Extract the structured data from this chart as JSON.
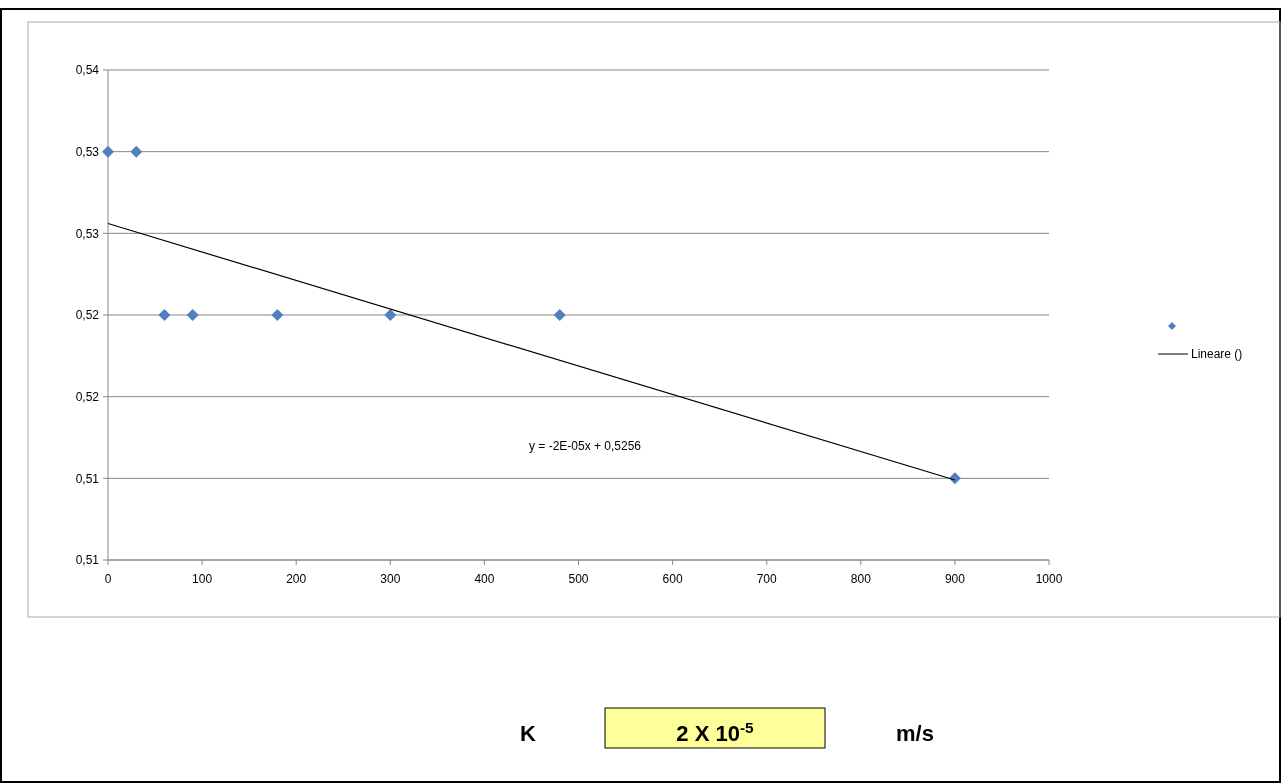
{
  "chart_data": {
    "type": "scatter",
    "grid": "y",
    "legend": "right",
    "xlim": [
      0,
      1000
    ],
    "xticks": [
      0,
      100,
      200,
      300,
      400,
      500,
      600,
      700,
      800,
      900,
      1000
    ],
    "ylim": [
      0.505,
      0.535
    ],
    "yticks": [
      {
        "value": 0.505,
        "label": "0,51"
      },
      {
        "value": 0.51,
        "label": "0,51"
      },
      {
        "value": 0.515,
        "label": "0,52"
      },
      {
        "value": 0.52,
        "label": "0,52"
      },
      {
        "value": 0.525,
        "label": "0,53"
      },
      {
        "value": 0.53,
        "label": "0,53"
      },
      {
        "value": 0.535,
        "label": "0,54"
      }
    ],
    "series": [
      {
        "color": "#4f81bd",
        "marker": "diamond",
        "x": [
          0,
          30,
          60,
          90,
          180,
          300,
          480,
          900
        ],
        "values": [
          0.53,
          0.53,
          0.52,
          0.52,
          0.52,
          0.52,
          0.52,
          0.51
        ]
      },
      {
        "type": "line",
        "name": "Lineare ()",
        "color": "#000000",
        "x": [
          0,
          900
        ],
        "values": [
          0.5256,
          0.5099
        ]
      }
    ],
    "annotations": [
      "y = -2E-05x + 0,5256",
      "K",
      "2 X 10$^{-5}$",
      "m/s"
    ]
  }
}
